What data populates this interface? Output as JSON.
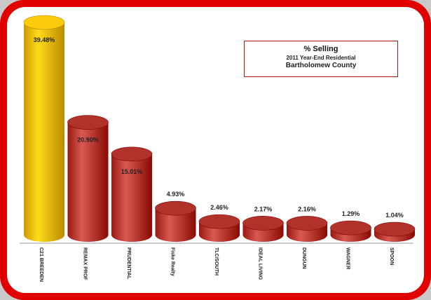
{
  "chart_data": {
    "type": "bar",
    "title": "% Selling",
    "subtitle": "2011 Year-End Residential",
    "subtitle2": "Bartholomew County",
    "categories": [
      "C21 BREEDEN",
      "REMAX PROF",
      "PRUDENTIAL",
      "Fiske Realty",
      "TLC/SOUTH",
      "IDEAL LIVING",
      "DUNGUN",
      "WAGNER",
      "SPOON"
    ],
    "values": [
      39.48,
      20.9,
      15.01,
      4.93,
      2.46,
      2.17,
      2.16,
      1.29,
      1.04
    ],
    "value_labels": [
      "39.48%",
      "20.90%",
      "15.01%",
      "4.93%",
      "2.46%",
      "2.17%",
      "2.16%",
      "1.29%",
      "1.04%"
    ],
    "ylim": [
      0,
      40
    ],
    "grid": false,
    "colors": {
      "highlight": "#f2c200",
      "bar": "#c0403a",
      "frame": "#e00000"
    }
  }
}
